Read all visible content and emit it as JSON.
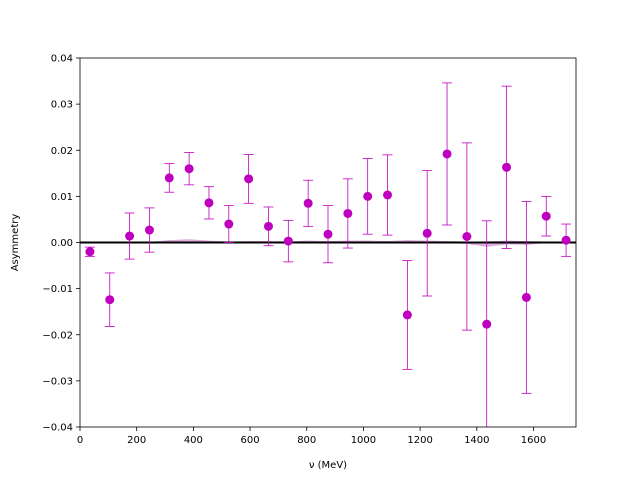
{
  "chart_data": {
    "type": "scatter",
    "title": "",
    "xlabel": "ν (MeV)",
    "ylabel": "Asymmetry",
    "xlim": [
      0,
      1750
    ],
    "ylim": [
      -0.04,
      0.04
    ],
    "x_ticks": [
      0,
      200,
      400,
      600,
      800,
      1000,
      1200,
      1400,
      1600
    ],
    "x_tick_labels": [
      "0",
      "200",
      "400",
      "600",
      "800",
      "1000",
      "1200",
      "1400",
      "1600"
    ],
    "y_ticks": [
      -0.04,
      -0.03,
      -0.02,
      -0.01,
      0.0,
      0.01,
      0.02,
      0.03,
      0.04
    ],
    "y_tick_labels": [
      "−0.04",
      "−0.03",
      "−0.02",
      "−0.01",
      "0.00",
      "0.01",
      "0.02",
      "0.03",
      "0.04"
    ],
    "grid": false,
    "legend": "none",
    "reference_line": 0.0,
    "colors": {
      "points": "#bf00bf",
      "band": "#d9a3d9",
      "zero_line": "#000000"
    },
    "series": [
      {
        "x": [
          35,
          105,
          175,
          245,
          315,
          385,
          455,
          525,
          595,
          665,
          735,
          805,
          875,
          945,
          1015,
          1085,
          1155,
          1225,
          1295,
          1365,
          1435,
          1505,
          1575,
          1645,
          1715
        ],
        "y": [
          -0.002,
          -0.0124,
          0.0014,
          0.0027,
          0.014,
          0.016,
          0.0086,
          0.004,
          0.0138,
          0.0035,
          0.0003,
          0.0085,
          0.0018,
          0.0063,
          0.01,
          0.0103,
          -0.0157,
          0.002,
          0.0192,
          0.0013,
          -0.0177,
          0.0163,
          -0.0119,
          0.0057,
          0.0005
        ],
        "yerr_low": [
          0.001,
          0.0058,
          0.005,
          0.0048,
          0.0031,
          0.0035,
          0.0035,
          0.004,
          0.0053,
          0.0042,
          0.0045,
          0.005,
          0.0062,
          0.0075,
          0.0082,
          0.0087,
          0.0118,
          0.0136,
          0.0154,
          0.0203,
          0.035,
          0.0176,
          0.0208,
          0.0043,
          0.0035
        ],
        "yerr_high": [
          0.001,
          0.0058,
          0.005,
          0.0048,
          0.0031,
          0.0035,
          0.0035,
          0.004,
          0.0053,
          0.0042,
          0.0045,
          0.005,
          0.0062,
          0.0075,
          0.0082,
          0.0087,
          0.0118,
          0.0136,
          0.0154,
          0.0203,
          0.0224,
          0.0176,
          0.0208,
          0.0043,
          0.0035
        ]
      }
    ],
    "band": {
      "x": [
        35,
        105,
        175,
        245,
        315,
        385,
        455,
        525,
        595,
        665,
        735,
        805,
        875,
        945,
        1015,
        1085,
        1155,
        1225,
        1295,
        1365,
        1435,
        1505,
        1575,
        1645,
        1715
      ],
      "lower": [
        0,
        0,
        0,
        0,
        0.0001,
        0.0001,
        0,
        0,
        0,
        0,
        0,
        0,
        0,
        0,
        0,
        0,
        0,
        0,
        0,
        -0.0002,
        -0.0008,
        -0.0003,
        -0.0004,
        0,
        0
      ],
      "upper": [
        0,
        0,
        0,
        0,
        0.0004,
        0.0006,
        0.0003,
        0.0001,
        0.0002,
        0.0002,
        0.0001,
        0.0003,
        0.0002,
        0.0003,
        0.0003,
        0.0002,
        0.0004,
        0.0003,
        0.0002,
        0.0001,
        0.0001,
        0.0003,
        0.0002,
        0.0001,
        0
      ]
    }
  }
}
